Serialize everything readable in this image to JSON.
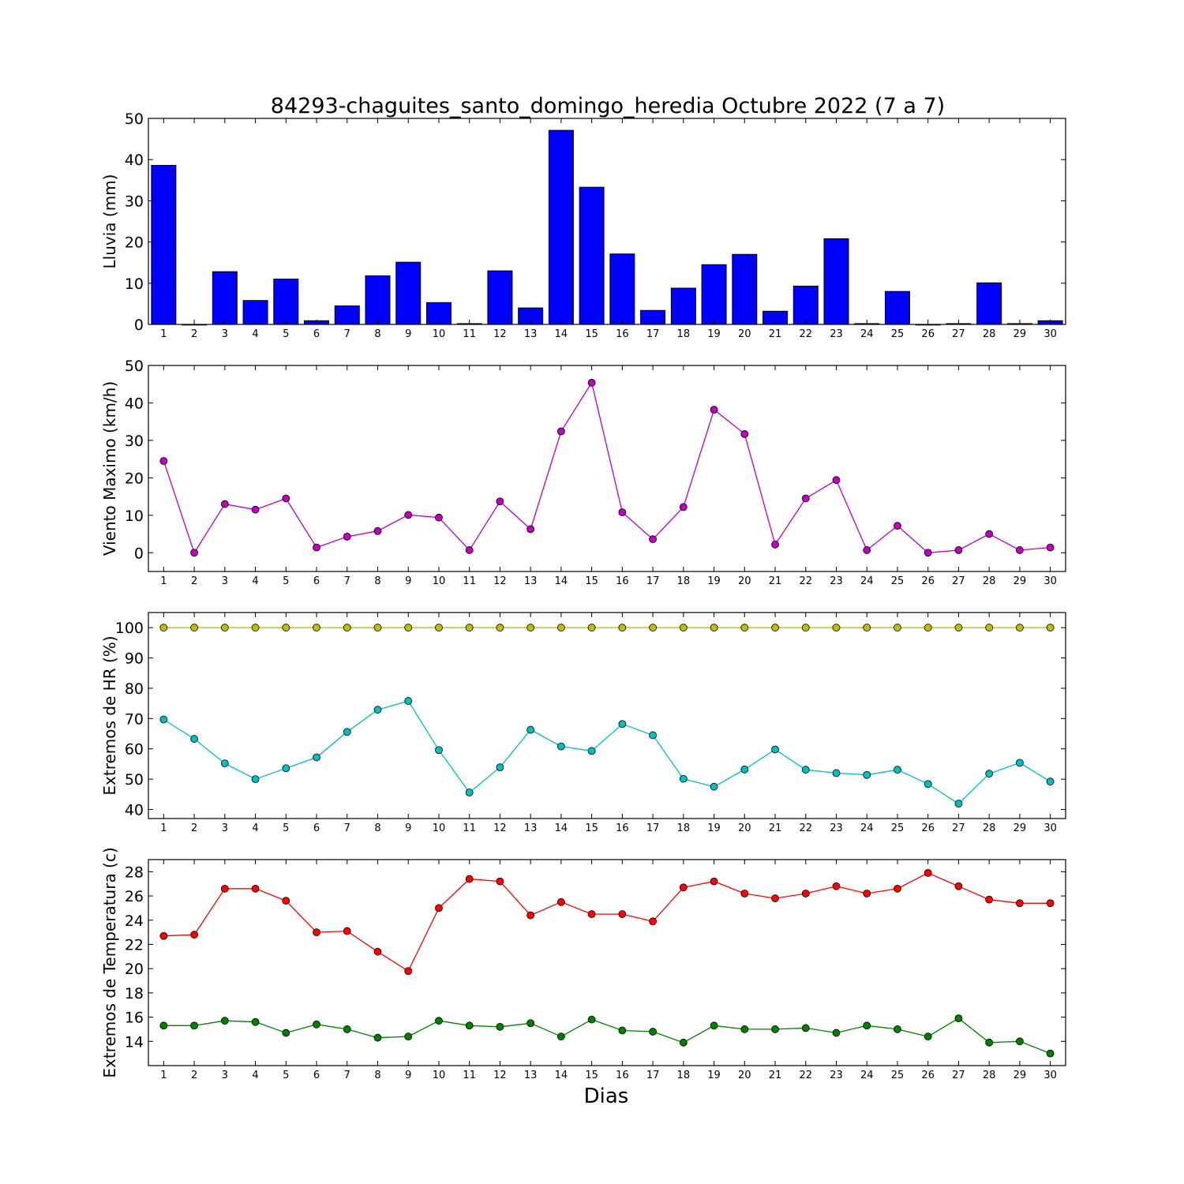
{
  "title": "84293-chaguites_santo_domingo_heredia Octubre 2022  (7 a 7)",
  "xlabel": "Dias",
  "colors": {
    "rain": "#0000ff",
    "wind": "#bf00bf",
    "hr_max": "#bfbf00",
    "hr_min": "#00bfbf",
    "temp_max": "#ff0000",
    "temp_min": "#008000"
  },
  "chart_data": [
    {
      "type": "bar",
      "ylabel": "Lluvia (mm)",
      "ylim": [
        0,
        50
      ],
      "yticks": [
        0,
        10,
        20,
        30,
        40,
        50
      ],
      "categories": [
        "1",
        "2",
        "3",
        "4",
        "5",
        "6",
        "7",
        "8",
        "9",
        "10",
        "11",
        "12",
        "13",
        "14",
        "15",
        "16",
        "17",
        "18",
        "19",
        "20",
        "21",
        "22",
        "23",
        "24",
        "25",
        "26",
        "27",
        "28",
        "29",
        "30"
      ],
      "series": [
        {
          "values": [
            38.6,
            0,
            12.8,
            5.8,
            11.0,
            0.9,
            4.5,
            11.8,
            15.1,
            5.3,
            0.2,
            13.0,
            4.0,
            47.1,
            33.3,
            17.1,
            3.4,
            8.8,
            14.5,
            17.0,
            3.2,
            9.3,
            20.8,
            0.2,
            8.0,
            0,
            0.2,
            10.1,
            0.2,
            0.9
          ],
          "color": "#0000ff"
        }
      ]
    },
    {
      "type": "line",
      "ylabel": "Viento Maximo (km/h)",
      "ylim": [
        -5,
        50
      ],
      "yticks": [
        0,
        10,
        20,
        30,
        40,
        50
      ],
      "categories": [
        "1",
        "2",
        "3",
        "4",
        "5",
        "6",
        "7",
        "8",
        "9",
        "10",
        "11",
        "12",
        "13",
        "14",
        "15",
        "16",
        "17",
        "18",
        "19",
        "20",
        "21",
        "22",
        "23",
        "24",
        "25",
        "26",
        "27",
        "28",
        "29",
        "30"
      ],
      "series": [
        {
          "values": [
            24.5,
            0,
            13.0,
            11.5,
            14.5,
            1.4,
            4.3,
            5.8,
            10.1,
            9.4,
            0.7,
            13.7,
            6.3,
            32.4,
            45.4,
            10.8,
            3.6,
            12.2,
            38.2,
            31.7,
            2.2,
            14.5,
            19.4,
            0.7,
            7.2,
            0,
            0.7,
            5.0,
            0.7,
            1.4
          ],
          "color": "#bf00bf"
        }
      ]
    },
    {
      "type": "line",
      "ylabel": "Extremos de HR (%)",
      "ylim": [
        37,
        105
      ],
      "yticks": [
        40,
        50,
        60,
        70,
        80,
        90,
        100
      ],
      "categories": [
        "1",
        "2",
        "3",
        "4",
        "5",
        "6",
        "7",
        "8",
        "9",
        "10",
        "11",
        "12",
        "13",
        "14",
        "15",
        "16",
        "17",
        "18",
        "19",
        "20",
        "21",
        "22",
        "23",
        "24",
        "25",
        "26",
        "27",
        "28",
        "29",
        "30"
      ],
      "series": [
        {
          "values": [
            100,
            100,
            100,
            100,
            100,
            100,
            100,
            100,
            100,
            100,
            100,
            100,
            100,
            100,
            100,
            100,
            100,
            100,
            100,
            100,
            100,
            100,
            100,
            100,
            100,
            100,
            100,
            100,
            100,
            100
          ],
          "color": "#bfbf00"
        },
        {
          "values": [
            69.7,
            63.3,
            55.2,
            50.0,
            53.6,
            57.2,
            65.6,
            72.9,
            75.8,
            59.6,
            45.6,
            53.9,
            66.3,
            60.8,
            59.3,
            68.2,
            64.5,
            50.1,
            47.5,
            53.2,
            59.8,
            53.1,
            52.0,
            51.4,
            53.1,
            48.4,
            41.9,
            51.8,
            55.4,
            49.2
          ],
          "color": "#00bfbf"
        }
      ]
    },
    {
      "type": "line",
      "ylabel": "Extremos de Temperatura (c)",
      "ylim": [
        12,
        29
      ],
      "yticks": [
        14,
        16,
        18,
        20,
        22,
        24,
        26,
        28
      ],
      "categories": [
        "1",
        "2",
        "3",
        "4",
        "5",
        "6",
        "7",
        "8",
        "9",
        "10",
        "11",
        "12",
        "13",
        "14",
        "15",
        "16",
        "17",
        "18",
        "19",
        "20",
        "21",
        "22",
        "23",
        "24",
        "25",
        "26",
        "27",
        "28",
        "29",
        "30"
      ],
      "series": [
        {
          "values": [
            22.7,
            22.8,
            26.6,
            26.6,
            25.6,
            23.0,
            23.1,
            21.4,
            19.8,
            25.0,
            27.4,
            27.2,
            24.4,
            25.5,
            24.5,
            24.5,
            23.9,
            26.7,
            27.2,
            26.2,
            25.8,
            26.2,
            26.8,
            26.2,
            26.6,
            27.9,
            26.8,
            25.7,
            25.4,
            25.4
          ],
          "color": "#ff0000"
        },
        {
          "values": [
            15.3,
            15.3,
            15.7,
            15.6,
            14.7,
            15.4,
            15.0,
            14.3,
            14.4,
            15.7,
            15.3,
            15.2,
            15.5,
            14.4,
            15.8,
            14.9,
            14.8,
            13.9,
            15.3,
            15.0,
            15.0,
            15.1,
            14.7,
            15.3,
            15.0,
            14.4,
            15.9,
            13.9,
            14.0,
            13.0
          ],
          "color": "#008000"
        }
      ]
    }
  ]
}
